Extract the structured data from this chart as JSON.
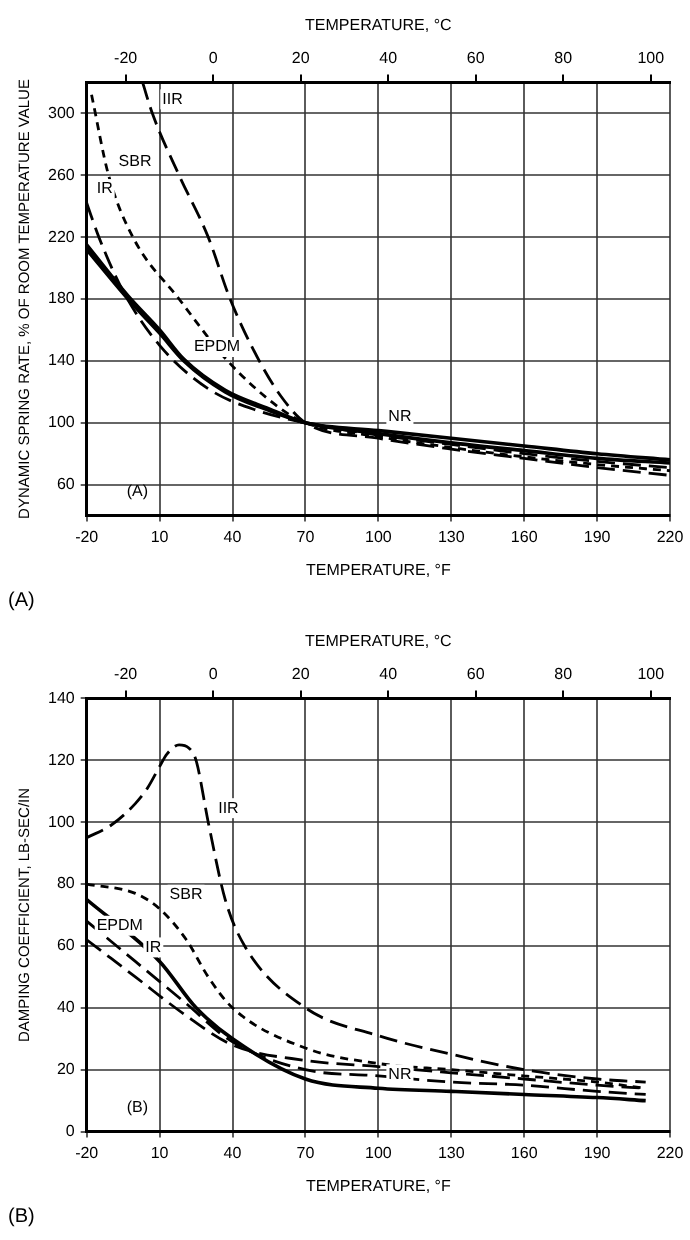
{
  "chart_data": [
    {
      "type": "line",
      "xlabel": "TEMPERATURE, °F",
      "x2label": "TEMPERATURE, °C",
      "ylabel": "DYNAMIC SPRING RATE, % OF ROOM TEMPERATURE VALUE",
      "xlim": [
        -20,
        220
      ],
      "xticks": [
        -20,
        10,
        40,
        70,
        100,
        130,
        160,
        190,
        220
      ],
      "x2lim": [
        -28.9,
        104.4
      ],
      "x2ticks": [
        -20,
        0,
        20,
        40,
        60,
        80,
        100
      ],
      "ylim": [
        40,
        320
      ],
      "yticks": [
        60,
        100,
        140,
        180,
        220,
        260,
        300
      ],
      "grid": true,
      "legend": false,
      "marker": "none",
      "series": [
        {
          "color": "#000000",
          "line_style": "dashed",
          "x": [
            3,
            7,
            18,
            30,
            39,
            51,
            60,
            70,
            100,
            130,
            160,
            190,
            220
          ],
          "values": [
            320,
            300,
            260,
            220,
            180,
            140,
            117,
            100,
            90,
            83,
            77,
            71,
            66
          ]
        },
        {
          "color": "#000000",
          "line_style": "dotted",
          "x": [
            -18,
            -11,
            -1,
            18,
            38,
            59,
            70,
            100,
            130,
            160,
            190,
            220
          ],
          "values": [
            312,
            260,
            220,
            180,
            140,
            110,
            100,
            91,
            84,
            78,
            73,
            69
          ]
        },
        {
          "color": "#000000",
          "line_style": "dashed",
          "x": [
            -20,
            -15,
            -5,
            10,
            30,
            50,
            70,
            100,
            130,
            160,
            190,
            220
          ],
          "values": [
            242,
            220,
            185,
            150,
            122,
            108,
            100,
            92,
            86,
            80,
            75,
            71
          ]
        },
        {
          "color": "#000000",
          "line_style": "solid",
          "x": [
            -20,
            -3,
            10,
            20,
            37,
            55,
            70,
            100,
            130,
            160,
            190,
            220
          ],
          "values": [
            212,
            180,
            158,
            140,
            120,
            108,
            100,
            93,
            87,
            82,
            77,
            74
          ]
        },
        {
          "color": "#000000",
          "line_style": "solid",
          "x": [
            -20,
            -3,
            10,
            20,
            37,
            55,
            70,
            100,
            130,
            160,
            190,
            220
          ],
          "values": [
            215,
            182,
            160,
            141,
            121,
            109,
            100,
            95,
            90,
            85,
            80,
            76
          ]
        }
      ],
      "annotations": [
        {
          "text": "IIR",
          "x": 7,
          "y": 300
        },
        {
          "text": "SBR",
          "x": -11,
          "y": 260
        },
        {
          "text": "IR",
          "x": -20,
          "y": 242
        },
        {
          "text": "EPDM",
          "x": 20,
          "y": 140
        },
        {
          "text": "NR",
          "x": 100,
          "y": 95
        },
        "(A)",
        "(A)"
      ]
    },
    {
      "type": "line",
      "xlabel": "TEMPERATURE, °F",
      "x2label": "TEMPERATURE, °C",
      "ylabel": "DAMPING COEFFICIENT, LB-SEC/IN",
      "xlim": [
        -20,
        220
      ],
      "xticks": [
        -20,
        10,
        40,
        70,
        100,
        130,
        160,
        190,
        220
      ],
      "x2lim": [
        -28.9,
        104.4
      ],
      "x2ticks": [
        -20,
        0,
        20,
        40,
        60,
        80,
        100
      ],
      "ylim": [
        0,
        140
      ],
      "yticks": [
        0,
        20,
        40,
        60,
        80,
        100,
        120,
        140
      ],
      "grid": true,
      "legend": false,
      "marker": "none",
      "series": [
        {
          "color": "#000000",
          "line_style": "dashed",
          "x": [
            -20,
            -10,
            0,
            5,
            10,
            13,
            18,
            22,
            25,
            30,
            37,
            45,
            70,
            100,
            130,
            160,
            190,
            210
          ],
          "values": [
            95,
            99,
            106,
            111,
            118,
            122,
            125,
            124,
            120,
            100,
            75,
            60,
            40,
            31,
            25,
            20,
            17,
            16
          ]
        },
        {
          "color": "#000000",
          "line_style": "dotted",
          "x": [
            -20,
            0,
            10,
            21,
            30,
            40,
            70,
            100,
            130,
            160,
            190,
            210
          ],
          "values": [
            80,
            77,
            72,
            62,
            50,
            40,
            27,
            22,
            20,
            18,
            16,
            14
          ]
        },
        {
          "color": "#000000",
          "line_style": "dashed",
          "x": [
            -20,
            0,
            20,
            40,
            70,
            100,
            130,
            160,
            190,
            210
          ],
          "values": [
            68,
            55,
            42,
            29,
            20,
            18,
            16,
            15,
            13,
            12
          ]
        },
        {
          "color": "#000000",
          "line_style": "dashed",
          "x": [
            -20,
            0,
            20,
            40,
            70,
            100,
            130,
            160,
            190,
            210
          ],
          "values": [
            62,
            50,
            38,
            28,
            23,
            21,
            19,
            17,
            15,
            14
          ]
        },
        {
          "color": "#000000",
          "line_style": "solid",
          "x": [
            -20,
            10,
            25,
            40,
            70,
            100,
            130,
            160,
            190,
            210
          ],
          "values": [
            75,
            55,
            40,
            30,
            17,
            14,
            13,
            12,
            11,
            10
          ]
        }
      ],
      "annotations": [
        {
          "text": "IIR",
          "x": 30,
          "y": 100
        },
        {
          "text": "SBR",
          "x": 10,
          "y": 72
        },
        {
          "text": "IR",
          "x": 0,
          "y": 55
        },
        {
          "text": "EPDM",
          "x": -20,
          "y": 62
        },
        {
          "text": "NR",
          "x": 100,
          "y": 14
        },
        "(B)",
        "(B)"
      ]
    }
  ]
}
